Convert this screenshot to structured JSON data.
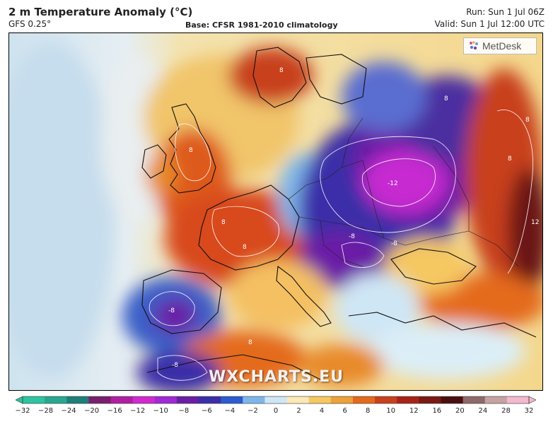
{
  "header": {
    "title": "2 m Temperature Anomaly (°C)",
    "model": "GFS 0.25°",
    "base": "Base: CFSR 1981-2010 climatology",
    "run": "Run: Sun 1 Jul 06Z",
    "valid": "Valid: Sun 1 Jul 12:00 UTC"
  },
  "logo": {
    "text": "MetDesk"
  },
  "watermark": "WXCHARTS.EU",
  "map_labels": [
    "8",
    "8",
    "8",
    "8",
    "8",
    "-12",
    "-8",
    "-8",
    "8",
    "8",
    "12",
    "-8",
    "-8",
    "8"
  ],
  "colorbar": {
    "ticks": [
      "−32",
      "−28",
      "−24",
      "−20",
      "−16",
      "−12",
      "−10",
      "−8",
      "−6",
      "−4",
      "−2",
      "0",
      "2",
      "4",
      "6",
      "8",
      "10",
      "12",
      "16",
      "20",
      "24",
      "28",
      "32"
    ],
    "colors": [
      "#2ec4a0",
      "#2aa78f",
      "#1f7f7a",
      "#7a1f6e",
      "#b01fa3",
      "#d02ad0",
      "#a02ad6",
      "#6a1fa6",
      "#3b2fa8",
      "#2d5bd0",
      "#7fb6ea",
      "#cfe6f5",
      "#fbe9b6",
      "#f5c862",
      "#eea03a",
      "#e46a1c",
      "#c8401c",
      "#a82418",
      "#7a1a14",
      "#4a1010",
      "#8e6a6a",
      "#c7a2a2",
      "#f3b9cf"
    ]
  }
}
